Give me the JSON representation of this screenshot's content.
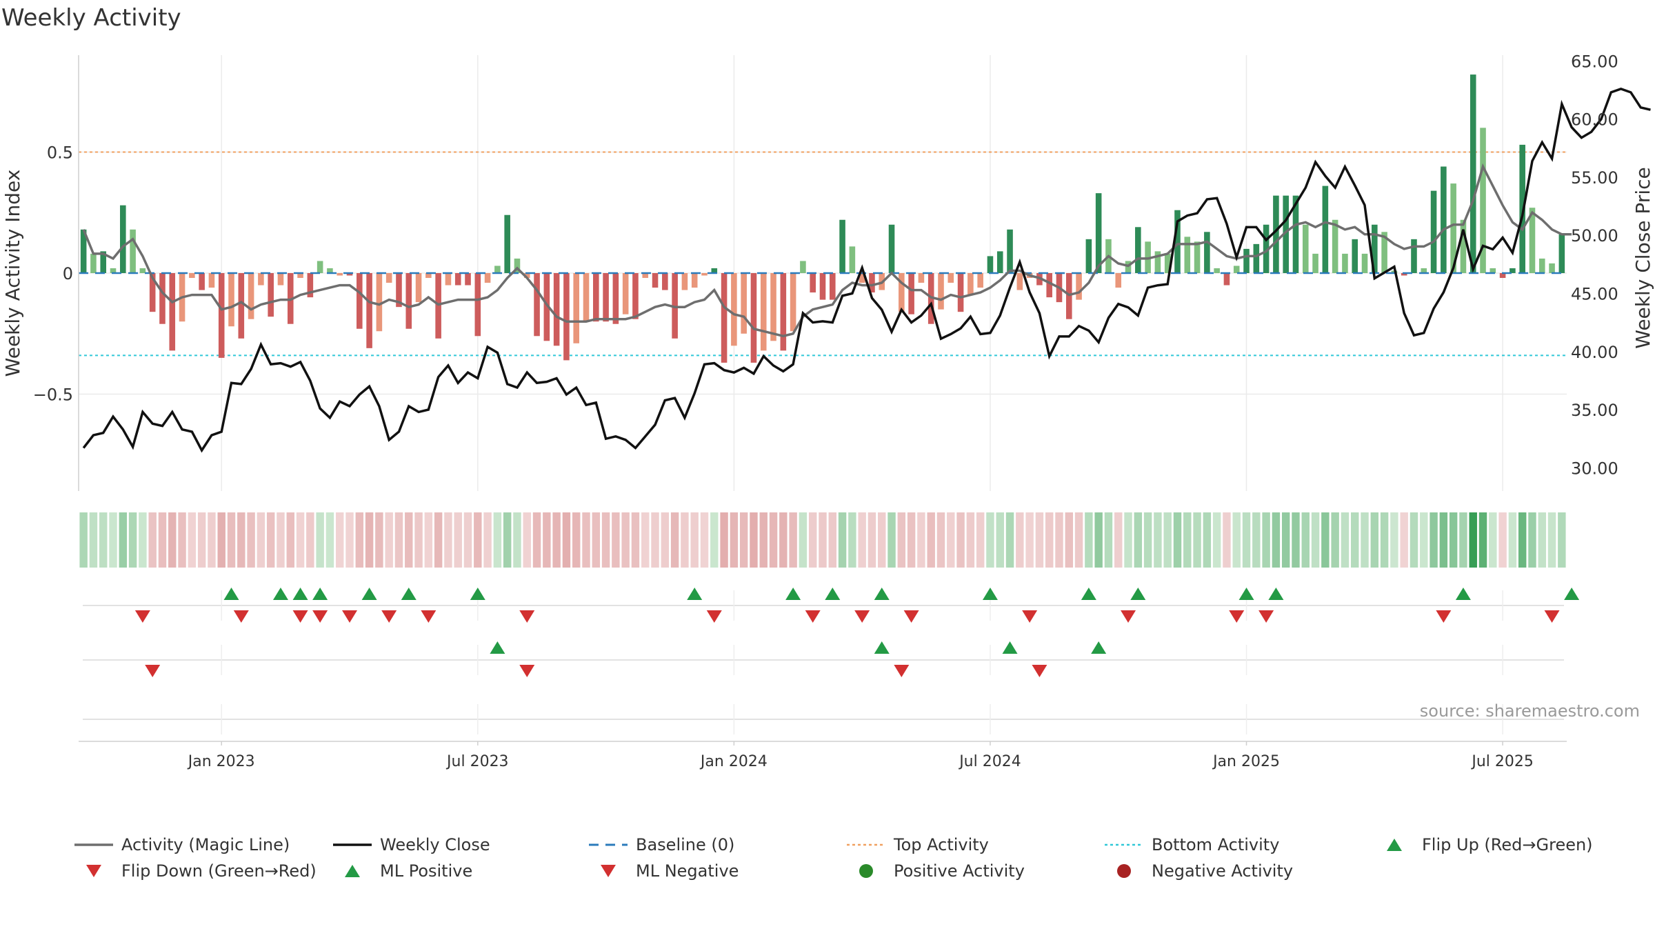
{
  "chart_data": {
    "type": "bar",
    "title": "Weekly Activity",
    "source": "source: sharemaestro.com",
    "y_left": {
      "label": "Weekly Activity Index",
      "ylim": [
        -0.9,
        0.9
      ],
      "ticks": [
        0.5,
        0,
        -0.5
      ],
      "tick_labels": [
        "0.5",
        "0",
        "−0.5"
      ]
    },
    "y_right": {
      "label": "Weekly Close Price",
      "ylim": [
        28.0,
        65.5
      ],
      "ticks": [
        30,
        35,
        40,
        45,
        50,
        55,
        60,
        65
      ],
      "tick_labels": [
        "30.00",
        "35.00",
        "40.00",
        "45.00",
        "50.00",
        "55.00",
        "60.00",
        "65.00"
      ]
    },
    "x_ticks": [
      "Jan 2023",
      "Jul 2023",
      "Jan 2024",
      "Jul 2024",
      "Jan 2025",
      "Jul 2025"
    ],
    "x_tick_weeks": [
      14.5,
      40.5,
      66.5,
      92.5,
      118.5,
      144.5
    ],
    "thresholds": {
      "top": 0.5,
      "bottom": -0.34,
      "baseline": 0
    },
    "activity": [
      0.18,
      0.08,
      0.09,
      0.02,
      0.28,
      0.18,
      0.02,
      -0.16,
      -0.21,
      -0.32,
      -0.2,
      -0.02,
      -0.07,
      -0.06,
      -0.35,
      -0.22,
      -0.27,
      -0.19,
      -0.05,
      -0.18,
      -0.05,
      -0.21,
      -0.02,
      -0.1,
      0.05,
      0.02,
      -0.01,
      -0.01,
      -0.23,
      -0.31,
      -0.24,
      -0.04,
      -0.14,
      -0.23,
      -0.12,
      -0.02,
      -0.27,
      -0.05,
      -0.05,
      -0.05,
      -0.26,
      -0.04,
      0.03,
      0.24,
      0.06,
      -0.02,
      -0.26,
      -0.28,
      -0.3,
      -0.36,
      -0.29,
      -0.2,
      -0.2,
      -0.2,
      -0.21,
      -0.17,
      -0.19,
      -0.02,
      -0.06,
      -0.07,
      -0.27,
      -0.07,
      -0.06,
      -0.01,
      0.02,
      -0.37,
      -0.3,
      -0.25,
      -0.37,
      -0.32,
      -0.28,
      -0.32,
      -0.24,
      0.05,
      -0.08,
      -0.11,
      -0.11,
      0.22,
      0.11,
      -0.04,
      -0.08,
      -0.07,
      0.2,
      -0.16,
      -0.17,
      -0.04,
      -0.21,
      -0.15,
      -0.04,
      -0.16,
      -0.09,
      -0.06,
      0.07,
      0.09,
      0.18,
      -0.07,
      -0.02,
      -0.05,
      -0.1,
      -0.12,
      -0.19,
      -0.11,
      0.14,
      0.33,
      0.14,
      -0.06,
      0.05,
      0.19,
      0.13,
      0.09,
      0.08,
      0.26,
      0.15,
      0.13,
      0.17,
      0.02,
      -0.05,
      0.03,
      0.1,
      0.12,
      0.2,
      0.32,
      0.32,
      0.32,
      0.2,
      0.08,
      0.36,
      0.22,
      0.08,
      0.14,
      0.08,
      0.2,
      0.17,
      0.01,
      -0.01,
      0.14,
      0.02,
      0.34,
      0.44,
      0.37,
      0.22,
      0.82,
      0.6,
      0.02,
      -0.02,
      0.02,
      0.53,
      0.27,
      0.06,
      0.04,
      0.16
    ],
    "weekly_close": [
      31.7,
      32.8,
      33.0,
      34.4,
      33.3,
      31.8,
      34.8,
      33.8,
      33.6,
      34.8,
      33.3,
      33.1,
      31.5,
      32.8,
      33.1,
      37.3,
      37.2,
      38.5,
      40.6,
      38.9,
      39.0,
      38.7,
      39.1,
      37.5,
      35.1,
      34.3,
      35.7,
      35.3,
      36.3,
      37.0,
      35.3,
      32.4,
      33.1,
      35.3,
      34.8,
      35.0,
      37.8,
      38.8,
      37.3,
      38.2,
      37.7,
      40.4,
      39.9,
      37.2,
      36.9,
      38.2,
      37.3,
      37.4,
      37.7,
      36.3,
      36.9,
      35.4,
      35.6,
      32.5,
      32.7,
      32.4,
      31.7,
      32.7,
      33.7,
      35.8,
      36.0,
      34.3,
      36.4,
      38.9,
      39.0,
      38.4,
      38.2,
      38.6,
      38.1,
      39.6,
      38.8,
      38.3,
      38.9,
      43.3,
      42.5,
      42.6,
      42.5,
      44.8,
      45.0,
      47.2,
      44.6,
      43.6,
      41.7,
      43.6,
      42.5,
      43.1,
      44.1,
      41.1,
      41.5,
      42.0,
      43.0,
      41.5,
      41.6,
      43.1,
      45.5,
      47.7,
      45.1,
      43.3,
      39.6,
      41.3,
      41.3,
      42.2,
      41.8,
      40.8,
      42.9,
      44.1,
      43.8,
      43.1,
      45.5,
      45.7,
      45.8,
      51.2,
      51.7,
      51.9,
      53.1,
      53.2,
      51.0,
      48.1,
      50.7,
      50.7,
      49.6,
      50.4,
      51.3,
      52.7,
      54.1,
      56.3,
      55.1,
      54.1,
      55.9,
      54.3,
      52.6,
      46.3,
      46.8,
      47.3,
      43.3,
      41.4,
      41.6,
      43.7,
      45.1,
      47.2,
      50.5,
      47.1,
      49.1,
      48.8,
      49.8,
      48.5,
      51.7,
      56.4,
      58.0,
      56.6,
      61.3,
      59.3,
      58.4,
      58.9,
      60.0,
      62.3,
      62.6,
      62.3,
      61.0,
      60.8
    ],
    "magic_line": [
      0.18,
      0.08,
      0.08,
      0.06,
      0.11,
      0.14,
      0.07,
      -0.02,
      -0.08,
      -0.12,
      -0.1,
      -0.09,
      -0.09,
      -0.09,
      -0.15,
      -0.14,
      -0.12,
      -0.15,
      -0.13,
      -0.12,
      -0.11,
      -0.11,
      -0.09,
      -0.08,
      -0.07,
      -0.06,
      -0.05,
      -0.05,
      -0.08,
      -0.12,
      -0.13,
      -0.11,
      -0.12,
      -0.14,
      -0.13,
      -0.1,
      -0.13,
      -0.12,
      -0.11,
      -0.11,
      -0.11,
      -0.1,
      -0.07,
      -0.02,
      0.02,
      -0.02,
      -0.07,
      -0.13,
      -0.18,
      -0.2,
      -0.2,
      -0.2,
      -0.19,
      -0.19,
      -0.19,
      -0.19,
      -0.18,
      -0.16,
      -0.14,
      -0.13,
      -0.14,
      -0.14,
      -0.12,
      -0.11,
      -0.07,
      -0.14,
      -0.17,
      -0.18,
      -0.23,
      -0.24,
      -0.25,
      -0.26,
      -0.25,
      -0.18,
      -0.15,
      -0.14,
      -0.13,
      -0.07,
      -0.04,
      -0.05,
      -0.05,
      -0.04,
      0.0,
      -0.04,
      -0.07,
      -0.07,
      -0.1,
      -0.11,
      -0.09,
      -0.1,
      -0.09,
      -0.08,
      -0.06,
      -0.03,
      0.01,
      0.01,
      -0.01,
      -0.02,
      -0.04,
      -0.06,
      -0.09,
      -0.08,
      -0.04,
      0.03,
      0.07,
      0.04,
      0.03,
      0.06,
      0.06,
      0.07,
      0.08,
      0.12,
      0.12,
      0.12,
      0.13,
      0.1,
      0.07,
      0.06,
      0.07,
      0.07,
      0.09,
      0.13,
      0.17,
      0.2,
      0.21,
      0.19,
      0.21,
      0.2,
      0.18,
      0.19,
      0.16,
      0.16,
      0.15,
      0.12,
      0.1,
      0.11,
      0.11,
      0.13,
      0.18,
      0.2,
      0.2,
      0.3,
      0.44,
      0.36,
      0.28,
      0.21,
      0.18,
      0.25,
      0.22,
      0.18,
      0.16,
      0.16
    ],
    "flip_up_weeks": [
      15,
      20,
      22,
      24,
      29,
      33,
      40,
      62,
      72,
      76,
      81,
      92,
      102,
      107,
      118,
      121,
      140,
      151
    ],
    "flip_down_weeks": [
      6,
      16,
      22,
      24,
      27,
      31,
      35,
      45,
      64,
      74,
      79,
      84,
      96,
      106,
      117,
      120,
      138,
      149
    ],
    "ml_positive_weeks": [
      42,
      81,
      94,
      103
    ],
    "ml_negative_weeks": [
      7,
      45,
      83,
      97
    ],
    "legend": [
      {
        "label": "Activity (Magic Line)",
        "kind": "line",
        "color": "#6e6e6e"
      },
      {
        "label": "Weekly Close",
        "kind": "line",
        "color": "#111111"
      },
      {
        "label": "Baseline (0)",
        "kind": "dash",
        "color": "#2b7bbb"
      },
      {
        "label": "Top Activity",
        "kind": "dot",
        "color": "#f0a060"
      },
      {
        "label": "Bottom Activity",
        "kind": "dot",
        "color": "#30c8d8"
      },
      {
        "label": "Flip Up (Red→Green)",
        "kind": "tri-up",
        "color": "#239a45"
      },
      {
        "label": "Flip Down (Green→Red)",
        "kind": "tri-down",
        "color": "#d23030"
      },
      {
        "label": "ML Positive",
        "kind": "tri-up",
        "color": "#239a45"
      },
      {
        "label": "ML Negative",
        "kind": "tri-down",
        "color": "#d23030"
      },
      {
        "label": "Positive Activity",
        "kind": "circle",
        "color": "#2a8a2a"
      },
      {
        "label": "Negative Activity",
        "kind": "circle",
        "color": "#a82222"
      }
    ],
    "colors": {
      "pos_strong": "#2e8b57",
      "pos_light": "#7fbf7f",
      "neg_strong": "#cd5c5c",
      "neg_light": "#e9967a",
      "grid": "#ebebeb",
      "axis": "#cfcfcf"
    }
  }
}
